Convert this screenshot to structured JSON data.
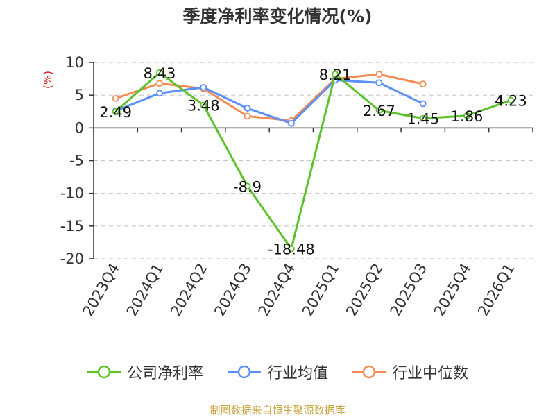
{
  "chart_data": {
    "type": "line",
    "title": "季度净利率变化情况(%)",
    "ylabel": "(%)",
    "xlabel": "",
    "categories": [
      "2023Q4",
      "2024Q1",
      "2024Q2",
      "2024Q3",
      "2024Q4",
      "2025Q1",
      "2025Q2",
      "2025Q3",
      "2025Q4",
      "2026Q1"
    ],
    "ylim": [
      -20,
      10
    ],
    "yticks": [
      10,
      5,
      0,
      -5,
      -10,
      -15,
      -20
    ],
    "grid": "horizontal dashed",
    "legend_position": "bottom",
    "series": [
      {
        "name": "公司净利率",
        "color": "#5cc22a",
        "values": [
          2.49,
          8.43,
          3.48,
          -8.9,
          -18.48,
          8.21,
          2.67,
          1.45,
          1.86,
          4.23
        ],
        "labels": [
          "2.49",
          "8.43",
          "3.48",
          "-8.9",
          "-18.48",
          "8.21",
          "2.67",
          "1.45",
          "1.86",
          "4.23"
        ]
      },
      {
        "name": "行业均值",
        "color": "#5b8ff9",
        "values": [
          2.6,
          5.3,
          6.2,
          3.0,
          0.7,
          7.3,
          6.9,
          3.7,
          null,
          null
        ]
      },
      {
        "name": "行业中位数",
        "color": "#f58b55",
        "values": [
          4.5,
          6.8,
          6.0,
          1.8,
          1.1,
          7.5,
          8.2,
          6.7,
          null,
          null
        ]
      }
    ]
  },
  "footer": {
    "source": "制图数据来自恒生聚源数据库"
  }
}
